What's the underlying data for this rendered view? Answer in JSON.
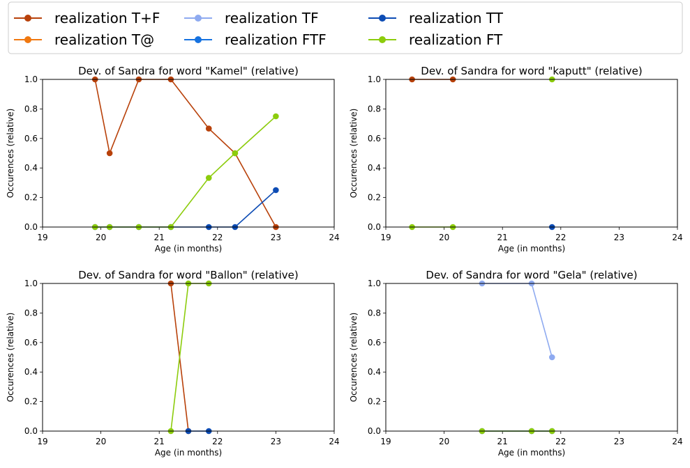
{
  "legend": {
    "placement": "top",
    "entries": [
      {
        "label": "realization T+F",
        "color": "#b8410a"
      },
      {
        "label": "realization T@",
        "color": "#f07810"
      },
      {
        "label": "realization TF",
        "color": "#8eaaf0"
      },
      {
        "label": "realization FTF",
        "color": "#1672e0"
      },
      {
        "label": "realization TT",
        "color": "#0d4cb4"
      },
      {
        "label": "realization FT",
        "color": "#8ccc0c"
      }
    ]
  },
  "chart_data": [
    {
      "type": "line",
      "title": "Dev. of Sandra for word \"Kamel\" (relative)",
      "xlabel": "Age (in months)",
      "ylabel": "Occurences (relative)",
      "xlim": [
        19,
        24
      ],
      "ylim": [
        0,
        1
      ],
      "xticks": [
        "19",
        "20",
        "21",
        "22",
        "23",
        "24"
      ],
      "yticks": [
        "0.0",
        "0.2",
        "0.4",
        "0.6",
        "0.8",
        "1.0"
      ],
      "grid": false,
      "series": [
        {
          "name": "realization T+F",
          "color": "#b8410a",
          "x": [
            19.9,
            20.15,
            20.65,
            21.2,
            21.85,
            22.3,
            23.0
          ],
          "values": [
            1.0,
            0.5,
            1.0,
            1.0,
            0.667,
            0.5,
            0.0
          ]
        },
        {
          "name": "realization TT",
          "color": "#0d4cb4",
          "x": [
            19.9,
            20.15,
            20.65,
            21.2,
            21.85,
            22.3,
            23.0
          ],
          "values": [
            0,
            0,
            0,
            0,
            0,
            0,
            0.25
          ]
        },
        {
          "name": "realization FT",
          "color": "#8ccc0c",
          "x": [
            19.9,
            20.15,
            20.65,
            21.2,
            21.85,
            22.3,
            23.0
          ],
          "values": [
            0,
            0,
            0,
            0,
            0.333,
            0.5,
            0.75
          ]
        }
      ]
    },
    {
      "type": "line",
      "title": "Dev. of Sandra for word \"kaputt\" (relative)",
      "xlabel": "Age (in months)",
      "ylabel": "Occurences (relative)",
      "xlim": [
        19,
        24
      ],
      "ylim": [
        0,
        1
      ],
      "xticks": [
        "19",
        "20",
        "21",
        "22",
        "23",
        "24"
      ],
      "yticks": [
        "0.0",
        "0.2",
        "0.4",
        "0.6",
        "0.8",
        "1.0"
      ],
      "grid": false,
      "series": [
        {
          "name": "realization T+F",
          "color": "#b8410a",
          "x": [
            19.45,
            20.15
          ],
          "values": [
            1.0,
            1.0
          ]
        },
        {
          "name": "realization TT",
          "color": "#0d4cb4",
          "x": [
            21.85
          ],
          "values": [
            0
          ]
        },
        {
          "name": "realization FT",
          "color": "#8ccc0c",
          "x": [
            19.45,
            20.15
          ],
          "values": [
            0,
            0
          ]
        },
        {
          "name": "realization FT",
          "color": "#8ccc0c",
          "x": [
            21.85
          ],
          "values": [
            1.0
          ]
        }
      ]
    },
    {
      "type": "line",
      "title": "Dev. of Sandra for word \"Ballon\" (relative)",
      "xlabel": "Age (in months)",
      "ylabel": "Occurences (relative)",
      "xlim": [
        19,
        24
      ],
      "ylim": [
        0,
        1
      ],
      "xticks": [
        "19",
        "20",
        "21",
        "22",
        "23",
        "24"
      ],
      "yticks": [
        "0.0",
        "0.2",
        "0.4",
        "0.6",
        "0.8",
        "1.0"
      ],
      "grid": false,
      "series": [
        {
          "name": "realization T+F",
          "color": "#b8410a",
          "x": [
            21.2,
            21.5
          ],
          "values": [
            1.0,
            0
          ]
        },
        {
          "name": "realization TT",
          "color": "#0d4cb4",
          "x": [
            21.5,
            21.85
          ],
          "values": [
            0,
            0
          ]
        },
        {
          "name": "realization FT",
          "color": "#8ccc0c",
          "x": [
            21.2,
            21.5,
            21.85
          ],
          "values": [
            0,
            1.0,
            1.0
          ]
        }
      ]
    },
    {
      "type": "line",
      "title": "Dev. of Sandra for word \"Gela\" (relative)",
      "xlabel": "Age (in months)",
      "ylabel": "Occurences (relative)",
      "xlim": [
        19,
        24
      ],
      "ylim": [
        0,
        1
      ],
      "xticks": [
        "19",
        "20",
        "21",
        "22",
        "23",
        "24"
      ],
      "yticks": [
        "0.0",
        "0.2",
        "0.4",
        "0.6",
        "0.8",
        "1.0"
      ],
      "grid": false,
      "series": [
        {
          "name": "realization TF",
          "color": "#8eaaf0",
          "x": [
            20.65,
            21.5,
            21.85
          ],
          "values": [
            1.0,
            1.0,
            0.5
          ]
        },
        {
          "name": "realization TT",
          "color": "#0d4cb4",
          "x": [
            20.65,
            21.5,
            21.85
          ],
          "values": [
            0,
            0,
            0
          ]
        },
        {
          "name": "realization FT",
          "color": "#8ccc0c",
          "x": [
            20.65,
            21.5,
            21.85
          ],
          "values": [
            0,
            0,
            0
          ]
        }
      ]
    }
  ]
}
